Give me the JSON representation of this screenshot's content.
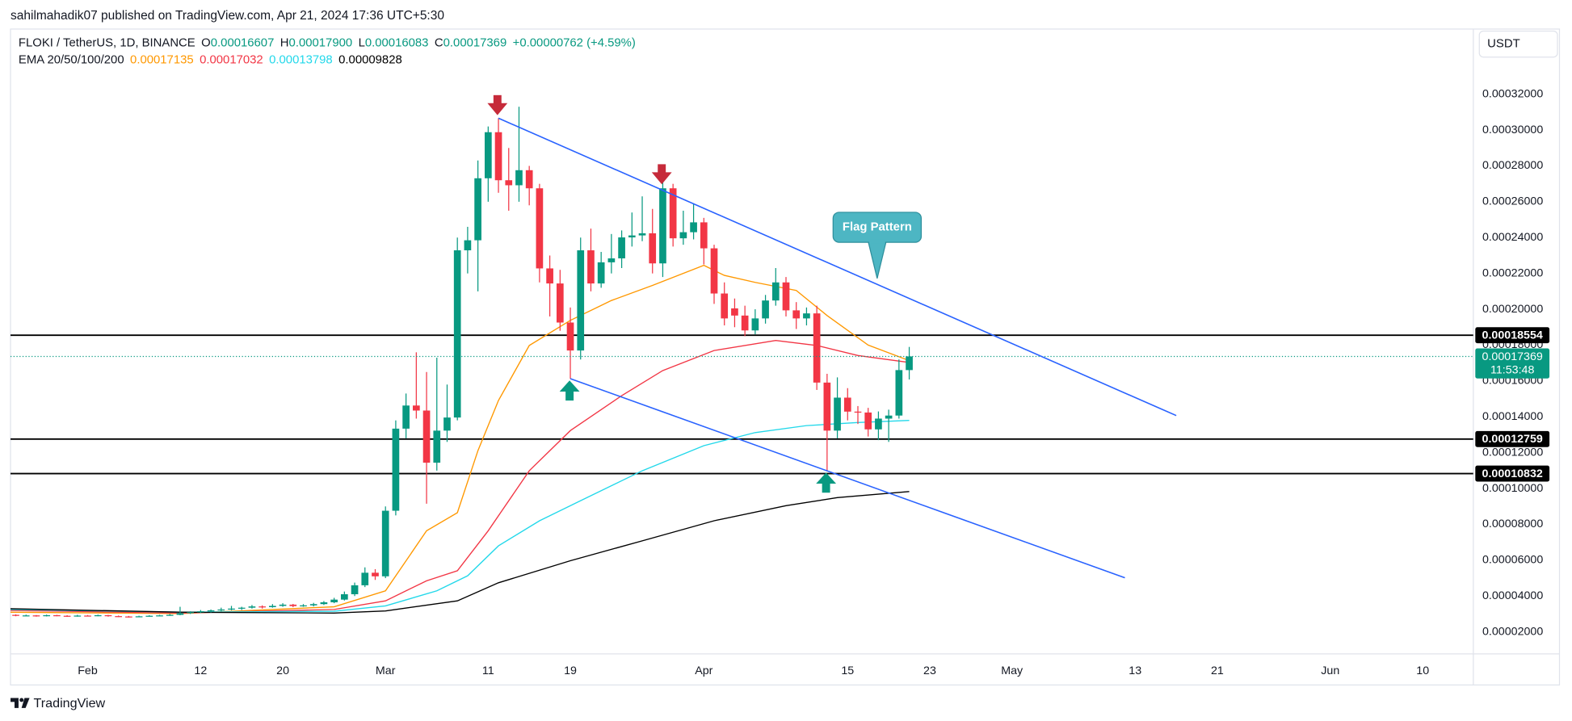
{
  "publisher": "sahilmahadik07 published on TradingView.com, Apr 21, 2024 17:36 UTC+5:30",
  "brand": "TradingView",
  "annotation": "Flag Pattern",
  "chart_data": {
    "type": "candlestick",
    "currency": "USDT",
    "header": {
      "symbol": "FLOKI / TetherUS, 1D, BINANCE",
      "o_label": "O",
      "open": "0.00016607",
      "h_label": "H",
      "high": "0.00017900",
      "l_label": "L",
      "low": "0.00016083",
      "c_label": "C",
      "close": "0.00017369",
      "change": "+0.00000762 (+4.59%)",
      "ema_label": "EMA 20/50/100/200"
    },
    "countdown": "11:53:48",
    "up_color": "#089981",
    "down_color": "#f23645",
    "x": [
      "2024-01-24",
      "2024-01-25",
      "2024-01-26",
      "2024-01-27",
      "2024-01-28",
      "2024-01-29",
      "2024-01-30",
      "2024-01-31",
      "2024-02-01",
      "2024-02-02",
      "2024-02-03",
      "2024-02-04",
      "2024-02-05",
      "2024-02-06",
      "2024-02-07",
      "2024-02-08",
      "2024-02-09",
      "2024-02-10",
      "2024-02-11",
      "2024-02-12",
      "2024-02-13",
      "2024-02-14",
      "2024-02-15",
      "2024-02-16",
      "2024-02-17",
      "2024-02-18",
      "2024-02-19",
      "2024-02-20",
      "2024-02-21",
      "2024-02-22",
      "2024-02-23",
      "2024-02-24",
      "2024-02-25",
      "2024-02-26",
      "2024-02-27",
      "2024-02-28",
      "2024-02-29",
      "2024-03-01",
      "2024-03-02",
      "2024-03-03",
      "2024-03-04",
      "2024-03-05",
      "2024-03-06",
      "2024-03-07",
      "2024-03-08",
      "2024-03-09",
      "2024-03-10",
      "2024-03-11",
      "2024-03-12",
      "2024-03-13",
      "2024-03-14",
      "2024-03-15",
      "2024-03-16",
      "2024-03-17",
      "2024-03-18",
      "2024-03-19",
      "2024-03-20",
      "2024-03-21",
      "2024-03-22",
      "2024-03-23",
      "2024-03-24",
      "2024-03-25",
      "2024-03-26",
      "2024-03-27",
      "2024-03-28",
      "2024-03-29",
      "2024-03-30",
      "2024-03-31",
      "2024-04-01",
      "2024-04-02",
      "2024-04-03",
      "2024-04-04",
      "2024-04-05",
      "2024-04-06",
      "2024-04-07",
      "2024-04-08",
      "2024-04-09",
      "2024-04-10",
      "2024-04-11",
      "2024-04-12",
      "2024-04-13",
      "2024-04-14",
      "2024-04-15",
      "2024-04-16",
      "2024-04-17",
      "2024-04-18",
      "2024-04-19",
      "2024-04-20",
      "2024-04-21"
    ],
    "open": [
      3e-05,
      2.95e-05,
      2.9e-05,
      2.92e-05,
      2.88e-05,
      2.93e-05,
      2.9e-05,
      2.87e-05,
      2.91e-05,
      2.89e-05,
      2.93e-05,
      2.88e-05,
      2.86e-05,
      2.84e-05,
      2.87e-05,
      2.9e-05,
      2.92e-05,
      2.95e-05,
      3.05e-05,
      3.1e-05,
      3.15e-05,
      3.2e-05,
      3.25e-05,
      3.3e-05,
      3.35e-05,
      3.42e-05,
      3.38e-05,
      3.45e-05,
      3.52e-05,
      3.44e-05,
      3.48e-05,
      3.55e-05,
      3.65e-05,
      3.8e-05,
      4.1e-05,
      4.6e-05,
      5.3e-05,
      5.1e-05,
      8.76e-05,
      0.0001334,
      0.0001463,
      0.0001435,
      0.0001144,
      0.0001323,
      0.0001396,
      0.0002329,
      0.0002385,
      0.0002731,
      0.0002988,
      0.000272,
      0.0002692,
      0.0002776,
      0.0002675,
      0.0002228,
      0.0002144,
      0.0001926,
      0.000177,
      0.0002329,
      0.0002144,
      0.0002262,
      0.0002284,
      0.0002401,
      0.0002412,
      0.0002424,
      0.0002256,
      0.0002675,
      0.0002396,
      0.000243,
      0.0002485,
      0.000234,
      0.0002088,
      0.0002005,
      0.0001965,
      0.0001882,
      0.0001949,
      0.0002049,
      0.000215,
      0.0001994,
      0.0001949,
      0.0001977,
      0.0001591,
      0.0001323,
      0.0001507,
      0.0001429,
      0.0001424,
      0.000133,
      0.000139,
      0.0001407,
      0.00016607
    ],
    "high": [
      3.05e-05,
      2.98e-05,
      2.96e-05,
      2.94e-05,
      2.96e-05,
      2.95e-05,
      2.93e-05,
      2.95e-05,
      2.94e-05,
      2.96e-05,
      2.95e-05,
      2.91e-05,
      2.89e-05,
      2.9e-05,
      2.93e-05,
      2.95e-05,
      3e-05,
      3.4e-05,
      3.15e-05,
      3.22e-05,
      3.25e-05,
      3.35e-05,
      3.45e-05,
      3.4e-05,
      3.5e-05,
      3.48e-05,
      3.55e-05,
      3.6e-05,
      3.56e-05,
      3.55e-05,
      3.62e-05,
      3.72e-05,
      3.9e-05,
      4.25e-05,
      4.75e-05,
      5.6e-05,
      5.5e-05,
      9e-05,
      0.000138,
      0.000153,
      0.000176,
      0.000165,
      0.000173,
      0.000158,
      0.00024,
      0.000246,
      0.000283,
      0.000302,
      0.0003066,
      0.00029,
      0.000313,
      0.00028,
      0.00027,
      0.00023,
      0.000222,
      0.000201,
      0.00024,
      0.000245,
      0.000232,
      0.000242,
      0.000244,
      0.000254,
      0.000263,
      0.000256,
      0.000271,
      0.00027,
      0.000255,
      0.000259,
      0.000251,
      0.000236,
      0.000215,
      0.000206,
      0.000202,
      0.0002,
      0.000208,
      0.000223,
      0.000218,
      0.000204,
      0.000201,
      0.000202,
      0.000164,
      0.000162,
      0.000156,
      0.000146,
      0.000145,
      0.000143,
      0.000144,
      0.000172,
      0.000179
    ],
    "low": [
      2.92e-05,
      2.87e-05,
      2.88e-05,
      2.85e-05,
      2.86e-05,
      2.87e-05,
      2.84e-05,
      2.85e-05,
      2.86e-05,
      2.87e-05,
      2.85e-05,
      2.83e-05,
      2.8e-05,
      2.82e-05,
      2.85e-05,
      2.88e-05,
      2.9e-05,
      2.93e-05,
      3e-05,
      3.05e-05,
      3.08e-05,
      3.15e-05,
      3.2e-05,
      3.22e-05,
      3.3e-05,
      3.3e-05,
      3.35e-05,
      3.4e-05,
      3.38e-05,
      3.4e-05,
      3.42e-05,
      3.5e-05,
      3.6e-05,
      3.75e-05,
      4e-05,
      4.5e-05,
      4.9e-05,
      5e-05,
      8.5e-05,
      0.000128,
      0.000139,
      9.15e-05,
      0.00011,
      0.000126,
      0.000138,
      0.00022,
      0.00021,
      0.00026,
      0.000265,
      0.000255,
      0.00026,
      0.000258,
      0.000215,
      0.000196,
      0.000188,
      0.0001613,
      0.000172,
      0.00021,
      0.000212,
      0.00022,
      0.000223,
      0.000235,
      0.000238,
      0.00022,
      0.000218,
      0.000235,
      0.000236,
      0.000239,
      0.000225,
      0.000203,
      0.000191,
      0.00019,
      0.000185,
      0.000186,
      0.000192,
      0.000202,
      0.000196,
      0.000189,
      0.000191,
      0.000155,
      0.0001099,
      0.000128,
      0.000138,
      0.000136,
      0.000129,
      0.000127,
      0.000126,
      0.000139,
      0.00016083
    ],
    "close": [
      2.95e-05,
      2.9e-05,
      2.92e-05,
      2.88e-05,
      2.93e-05,
      2.9e-05,
      2.87e-05,
      2.91e-05,
      2.89e-05,
      2.93e-05,
      2.88e-05,
      2.86e-05,
      2.84e-05,
      2.87e-05,
      2.9e-05,
      2.92e-05,
      2.95e-05,
      3.05e-05,
      3.1e-05,
      3.15e-05,
      3.2e-05,
      3.25e-05,
      3.3e-05,
      3.35e-05,
      3.42e-05,
      3.38e-05,
      3.45e-05,
      3.52e-05,
      3.44e-05,
      3.48e-05,
      3.55e-05,
      3.65e-05,
      3.8e-05,
      4.1e-05,
      4.6e-05,
      5.3e-05,
      5.1e-05,
      8.76e-05,
      0.0001334,
      0.0001463,
      0.0001435,
      0.0001144,
      0.0001323,
      0.0001396,
      0.0002329,
      0.0002385,
      0.0002731,
      0.0002988,
      0.000272,
      0.0002692,
      0.0002776,
      0.0002675,
      0.0002228,
      0.0002144,
      0.0001926,
      0.000177,
      0.0002329,
      0.0002144,
      0.0002262,
      0.0002284,
      0.0002401,
      0.0002412,
      0.0002424,
      0.0002256,
      0.0002675,
      0.0002396,
      0.000243,
      0.0002485,
      0.000234,
      0.0002088,
      0.0001949,
      0.0001965,
      0.0001882,
      0.0001949,
      0.0002049,
      0.000215,
      0.0001994,
      0.0001949,
      0.0001977,
      0.0001591,
      0.0001323,
      0.0001507,
      0.0001429,
      0.0001424,
      0.000133,
      0.000139,
      0.0001407,
      0.00016607,
      0.00017369
    ],
    "series": [
      {
        "color": "#ff9800",
        "x": [
          "2024-01-24",
          "2024-02-10",
          "2024-02-25",
          "2024-03-01",
          "2024-03-05",
          "2024-03-08",
          "2024-03-10",
          "2024-03-12",
          "2024-03-15",
          "2024-03-19",
          "2024-03-23",
          "2024-03-27",
          "2024-04-01",
          "2024-04-03",
          "2024-04-06",
          "2024-04-10",
          "2024-04-13",
          "2024-04-17",
          "2024-04-21"
        ],
        "values": [
          3.1e-05,
          3.02e-05,
          3.4e-05,
          4.29e-05,
          7.64e-05,
          8.65e-05,
          0.0001211,
          0.0001491,
          0.0001798,
          0.0001938,
          0.0002049,
          0.0002133,
          0.0002245,
          0.0002189,
          0.000215,
          0.0002105,
          0.0001965,
          0.00018,
          0.00017135
        ]
      },
      {
        "color": "#f23645",
        "x": [
          "2024-01-24",
          "2024-02-10",
          "2024-02-25",
          "2024-03-01",
          "2024-03-05",
          "2024-03-08",
          "2024-03-11",
          "2024-03-15",
          "2024-03-19",
          "2024-03-24",
          "2024-03-28",
          "2024-04-02",
          "2024-04-08",
          "2024-04-12",
          "2024-04-16",
          "2024-04-21"
        ],
        "values": [
          3.2e-05,
          3.05e-05,
          3.25e-05,
          3.73e-05,
          4.85e-05,
          5.41e-05,
          7.64e-05,
          0.0001099,
          0.0001323,
          0.0001518,
          0.0001658,
          0.000177,
          0.0001826,
          0.0001798,
          0.0001742,
          0.00017032
        ]
      },
      {
        "color": "#22d8ea",
        "x": [
          "2024-01-24",
          "2024-02-10",
          "2024-02-25",
          "2024-03-01",
          "2024-03-06",
          "2024-03-09",
          "2024-03-12",
          "2024-03-16",
          "2024-03-20",
          "2024-03-26",
          "2024-04-01",
          "2024-04-06",
          "2024-04-11",
          "2024-04-16",
          "2024-04-21"
        ],
        "values": [
          3.25e-05,
          3.1e-05,
          3.15e-05,
          3.45e-05,
          4.29e-05,
          5.13e-05,
          6.8e-05,
          8.2e-05,
          9.32e-05,
          0.0001099,
          0.0001239,
          0.0001312,
          0.0001351,
          0.0001368,
          0.00013798
        ]
      },
      {
        "color": "#000000",
        "x": [
          "2024-01-24",
          "2024-02-10",
          "2024-02-25",
          "2024-03-01",
          "2024-03-08",
          "2024-03-12",
          "2024-03-19",
          "2024-03-26",
          "2024-04-02",
          "2024-04-09",
          "2024-04-14",
          "2024-04-21"
        ],
        "values": [
          3.3e-05,
          3.1e-05,
          3.05e-05,
          3.17e-05,
          3.73e-05,
          4.74e-05,
          5.97e-05,
          7.08e-05,
          8.2e-05,
          9.04e-05,
          9.49e-05,
          9.828e-05
        ]
      }
    ],
    "hlines": [
      0.00018554,
      0.00012759,
      0.00010832
    ],
    "trendlines": [
      {
        "color": "#2962ff",
        "x": [
          "2024-03-12",
          "2024-05-17"
        ],
        "values": [
          0.0003066,
          0.0001407
        ]
      },
      {
        "color": "#2962ff",
        "x": [
          "2024-03-19",
          "2024-05-12"
        ],
        "values": [
          0.0001613,
          5.02e-05
        ]
      }
    ],
    "xlim": [
      "2024-01-24",
      "2024-06-14"
    ],
    "xticks": [
      {
        "value": "2024-02-01",
        "label": "Feb"
      },
      {
        "value": "2024-02-12",
        "label": "12"
      },
      {
        "value": "2024-02-20",
        "label": "20"
      },
      {
        "value": "2024-03-01",
        "label": "Mar"
      },
      {
        "value": "2024-03-11",
        "label": "11"
      },
      {
        "value": "2024-03-19",
        "label": "19"
      },
      {
        "value": "2024-04-01",
        "label": "Apr"
      },
      {
        "value": "2024-04-15",
        "label": "15"
      },
      {
        "value": "2024-04-23",
        "label": "23"
      },
      {
        "value": "2024-05-01",
        "label": "May"
      },
      {
        "value": "2024-05-13",
        "label": "13"
      },
      {
        "value": "2024-05-21",
        "label": "21"
      },
      {
        "value": "2024-06-01",
        "label": "Jun"
      },
      {
        "value": "2024-06-10",
        "label": "10"
      }
    ],
    "ylim": [
      8.27e-06,
      0.0003558
    ],
    "yticks": [
      {
        "value": 2e-05,
        "label": "0.00002000"
      },
      {
        "value": 4e-05,
        "label": "0.00004000"
      },
      {
        "value": 6e-05,
        "label": "0.00006000"
      },
      {
        "value": 8e-05,
        "label": "0.00008000"
      },
      {
        "value": 0.0001,
        "label": "0.00010000"
      },
      {
        "value": 0.00012,
        "label": "0.00012000"
      },
      {
        "value": 0.00014,
        "label": "0.00014000"
      },
      {
        "value": 0.00016,
        "label": "0.00016000"
      },
      {
        "value": 0.00018,
        "label": "0.00018000"
      },
      {
        "value": 0.0002,
        "label": "0.00020000"
      },
      {
        "value": 0.00022,
        "label": "0.00022000"
      },
      {
        "value": 0.00024,
        "label": "0.00024000"
      },
      {
        "value": 0.00026,
        "label": "0.00026000"
      },
      {
        "value": 0.00028,
        "label": "0.00028000"
      },
      {
        "value": 0.0003,
        "label": "0.00030000"
      },
      {
        "value": 0.00032,
        "label": "0.00032000"
      }
    ],
    "grid": false
  }
}
